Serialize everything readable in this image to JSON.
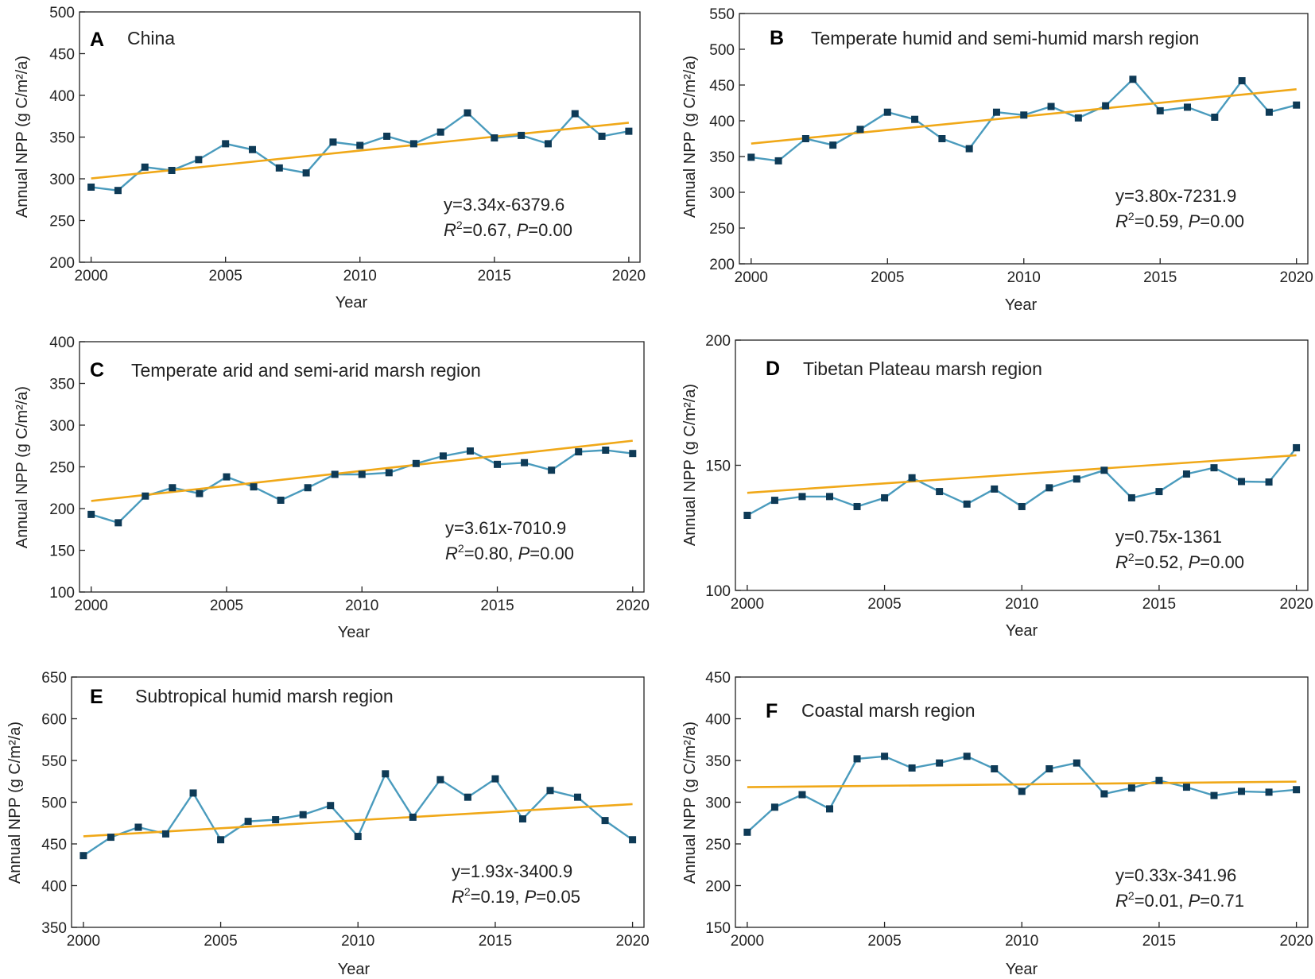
{
  "colors": {
    "series_line": "#4a9bbd",
    "marker": "#0e3a56",
    "trend_line": "#f0a818",
    "axis": "#222222"
  },
  "chart_data": [
    {
      "panel": "A",
      "type": "line",
      "title": "China",
      "xlabel": "Year",
      "ylabel": "Annual NPP (g C/m²/a)",
      "x": [
        2000,
        2001,
        2002,
        2003,
        2004,
        2005,
        2006,
        2007,
        2008,
        2009,
        2010,
        2011,
        2012,
        2013,
        2014,
        2015,
        2016,
        2017,
        2018,
        2019,
        2020
      ],
      "values": [
        290,
        286,
        314,
        310,
        323,
        342,
        335,
        313,
        307,
        344,
        340,
        351,
        342,
        356,
        379,
        349,
        352,
        342,
        378,
        351,
        357
      ],
      "trend": {
        "slope": 3.34,
        "intercept": -6379.6
      },
      "equation": "y=3.34x-6379.6",
      "r2_text": "=0.67, ",
      "p_text": "=0.00",
      "xlim": [
        2000,
        2020
      ],
      "xticks": [
        2000,
        2005,
        2010,
        2015,
        2020
      ],
      "ylim": [
        200,
        500
      ],
      "yticks": [
        200,
        250,
        300,
        350,
        400,
        450,
        500
      ]
    },
    {
      "panel": "B",
      "type": "line",
      "title": "Temperate humid and semi-humid marsh region",
      "xlabel": "Year",
      "ylabel": "Annual NPP (g C/m²/a)",
      "x": [
        2000,
        2001,
        2002,
        2003,
        2004,
        2005,
        2006,
        2007,
        2008,
        2009,
        2010,
        2011,
        2012,
        2013,
        2014,
        2015,
        2016,
        2017,
        2018,
        2019,
        2020
      ],
      "values": [
        349,
        344,
        375,
        366,
        388,
        412,
        402,
        375,
        361,
        412,
        408,
        420,
        404,
        421,
        458,
        414,
        419,
        405,
        456,
        412,
        422
      ],
      "trend": {
        "slope": 3.8,
        "intercept": -7231.9
      },
      "equation": "y=3.80x-7231.9",
      "r2_text": "=0.59, ",
      "p_text": "=0.00",
      "xlim": [
        2000,
        2020
      ],
      "xticks": [
        2000,
        2005,
        2010,
        2015,
        2020
      ],
      "ylim": [
        200,
        550
      ],
      "yticks": [
        200,
        250,
        300,
        350,
        400,
        450,
        500,
        550
      ]
    },
    {
      "panel": "C",
      "type": "line",
      "title": "Temperate arid and semi-arid marsh region",
      "xlabel": "Year",
      "ylabel": "Annual NPP (g C/m²/a)",
      "x": [
        2000,
        2001,
        2002,
        2003,
        2004,
        2005,
        2006,
        2007,
        2008,
        2009,
        2010,
        2011,
        2012,
        2013,
        2014,
        2015,
        2016,
        2017,
        2018,
        2019,
        2020
      ],
      "values": [
        193,
        183,
        215,
        225,
        218,
        238,
        226,
        210,
        225,
        241,
        241,
        243,
        254,
        263,
        269,
        253,
        255,
        246,
        268,
        270,
        266
      ],
      "trend": {
        "slope": 3.61,
        "intercept": -7010.9
      },
      "equation": "y=3.61x-7010.9",
      "r2_text": "=0.80, ",
      "p_text": "=0.00",
      "xlim": [
        2000,
        2020
      ],
      "xticks": [
        2000,
        2005,
        2010,
        2015,
        2020
      ],
      "ylim": [
        100,
        400
      ],
      "yticks": [
        100,
        150,
        200,
        250,
        300,
        350,
        400
      ]
    },
    {
      "panel": "D",
      "type": "line",
      "title": "Tibetan Plateau marsh region",
      "xlabel": "Year",
      "ylabel": "Annual NPP (g C/m²/a)",
      "x": [
        2000,
        2001,
        2002,
        2003,
        2004,
        2005,
        2006,
        2007,
        2008,
        2009,
        2010,
        2011,
        2012,
        2013,
        2014,
        2015,
        2016,
        2017,
        2018,
        2019,
        2020
      ],
      "values": [
        130,
        136,
        137.5,
        137.5,
        133.5,
        137,
        145,
        139.5,
        134.5,
        140.5,
        133.5,
        141,
        144.5,
        148,
        137,
        139.5,
        146.5,
        149,
        143.5,
        143.3,
        157
      ],
      "trend": {
        "slope": 0.75,
        "intercept": -1361
      },
      "equation": "y=0.75x-1361",
      "r2_text": "=0.52, ",
      "p_text": "=0.00",
      "xlim": [
        2000,
        2020
      ],
      "xticks": [
        2000,
        2005,
        2010,
        2015,
        2020
      ],
      "ylim": [
        100,
        200
      ],
      "yticks": [
        100,
        150,
        200
      ]
    },
    {
      "panel": "E",
      "type": "line",
      "title": "Subtropical humid marsh region",
      "xlabel": "Year",
      "ylabel": "Annual NPP (g C/m²/a)",
      "x": [
        2000,
        2001,
        2002,
        2003,
        2004,
        2005,
        2006,
        2007,
        2008,
        2009,
        2010,
        2011,
        2012,
        2013,
        2014,
        2015,
        2016,
        2017,
        2018,
        2019,
        2020
      ],
      "values": [
        436,
        458,
        470,
        462,
        511,
        455,
        477,
        479,
        485,
        496,
        459,
        534,
        482,
        527,
        506,
        528,
        480,
        514,
        506,
        478,
        455
      ],
      "trend": {
        "slope": 1.93,
        "intercept": -3400.9
      },
      "equation": "y=1.93x-3400.9",
      "r2_text": "=0.19, ",
      "p_text": "=0.05",
      "xlim": [
        2000,
        2020
      ],
      "xticks": [
        2000,
        2005,
        2010,
        2015,
        2020
      ],
      "ylim": [
        350,
        650
      ],
      "yticks": [
        350,
        400,
        450,
        500,
        550,
        600,
        650
      ]
    },
    {
      "panel": "F",
      "type": "line",
      "title": "Coastal marsh region",
      "xlabel": "Year",
      "ylabel": "Annual NPP (g C/m²/a)",
      "x": [
        2000,
        2001,
        2002,
        2003,
        2004,
        2005,
        2006,
        2007,
        2008,
        2009,
        2010,
        2011,
        2012,
        2013,
        2014,
        2015,
        2016,
        2017,
        2018,
        2019,
        2020
      ],
      "values": [
        264,
        294,
        309,
        292,
        352,
        355,
        341,
        347,
        355,
        340,
        313,
        340,
        347,
        310,
        317,
        326,
        318,
        308,
        313,
        312,
        315
      ],
      "trend": {
        "slope": 0.33,
        "intercept": -341.96
      },
      "equation": "y=0.33x-341.96",
      "r2_text": "=0.01, ",
      "p_text": "=0.71",
      "xlim": [
        2000,
        2020
      ],
      "xticks": [
        2000,
        2005,
        2010,
        2015,
        2020
      ],
      "ylim": [
        150,
        450
      ],
      "yticks": [
        150,
        200,
        250,
        300,
        350,
        400,
        450
      ]
    }
  ]
}
